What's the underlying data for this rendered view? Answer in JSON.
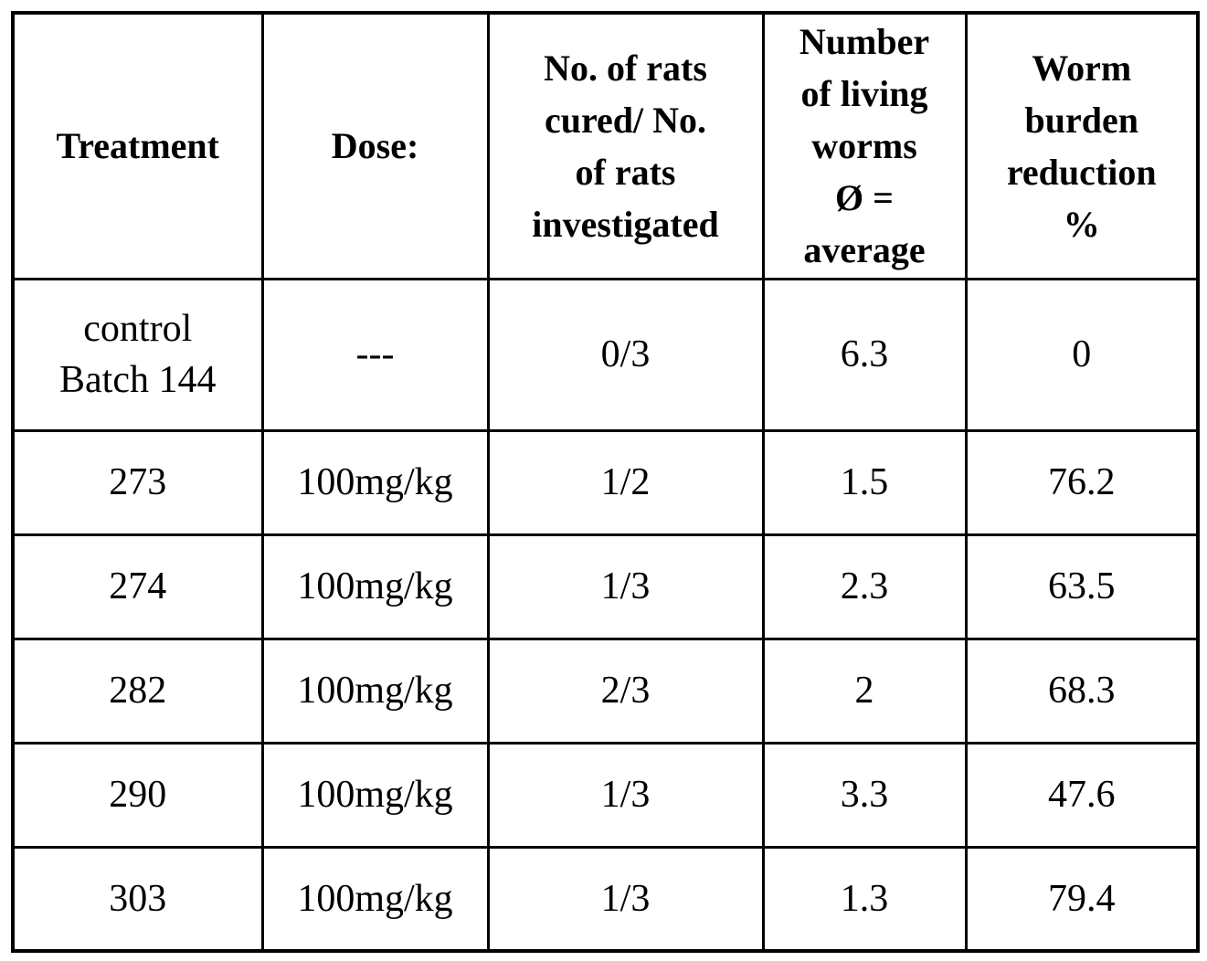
{
  "table": {
    "headers": [
      "Treatment",
      "Dose:",
      "No. of rats\ncured/ No.\nof rats\ninvestigated",
      "Number\nof living\nworms\nØ =\naverage",
      "Worm\nburden\nreduction\n%"
    ],
    "rows": [
      [
        "control\nBatch 144",
        "---",
        "0/3",
        "6.3",
        "0"
      ],
      [
        "273",
        "100mg/kg",
        "1/2",
        "1.5",
        "76.2"
      ],
      [
        "274",
        "100mg/kg",
        "1/3",
        "2.3",
        "63.5"
      ],
      [
        "282",
        "100mg/kg",
        "2/3",
        "2",
        "68.3"
      ],
      [
        "290",
        "100mg/kg",
        "1/3",
        "3.3",
        "47.6"
      ],
      [
        "303",
        "100mg/kg",
        "1/3",
        "1.3",
        "79.4"
      ]
    ]
  }
}
